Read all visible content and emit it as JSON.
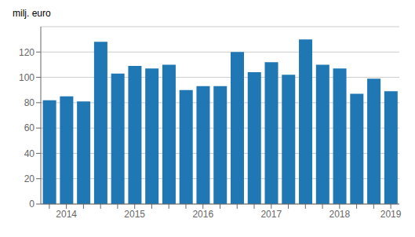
{
  "chart_data": {
    "type": "bar",
    "ylabel": "milj. euro",
    "categories": [
      null,
      "2014",
      null,
      null,
      null,
      "2015",
      null,
      null,
      null,
      "2016",
      null,
      null,
      null,
      "2017",
      null,
      null,
      null,
      "2018",
      null,
      null,
      "2019"
    ],
    "values": [
      82,
      85,
      81,
      128,
      103,
      109,
      107,
      110,
      90,
      93,
      93,
      120,
      104,
      112,
      102,
      130,
      110,
      107,
      87,
      99,
      89
    ],
    "color": "#1f77b4",
    "ylim": [
      0,
      140
    ],
    "yticks": [
      0,
      20,
      40,
      60,
      80,
      100,
      120
    ],
    "grid": true
  }
}
